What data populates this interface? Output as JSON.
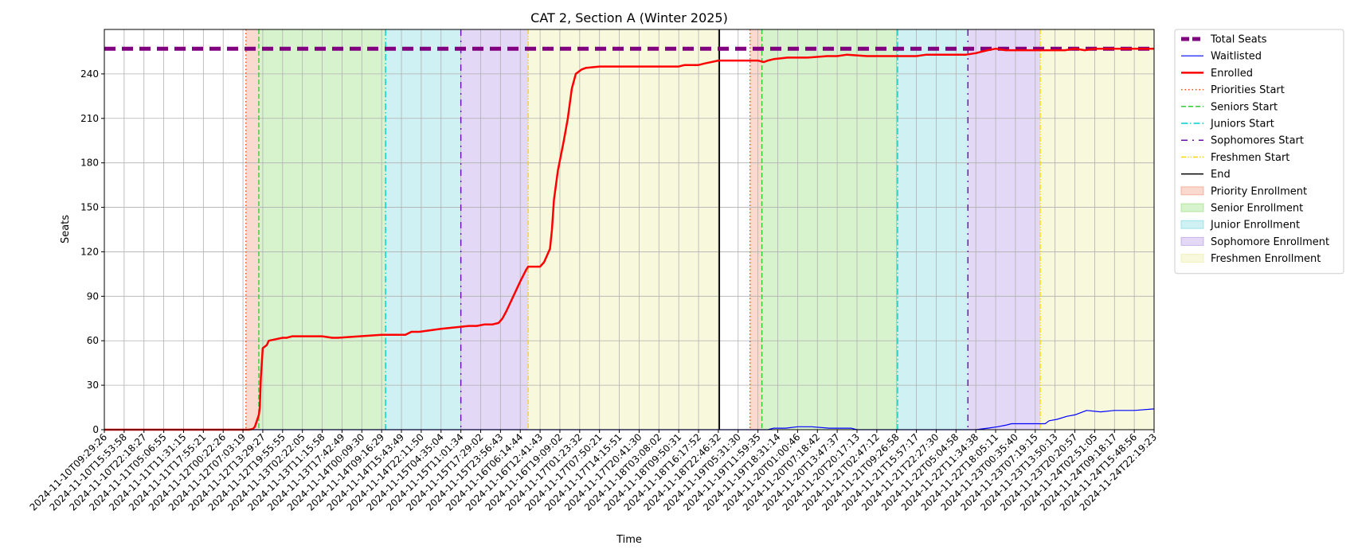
{
  "chart_data": {
    "type": "line",
    "title": "CAT 2, Section A (Winter 2025)",
    "xlabel": "Time",
    "ylabel": "Seats",
    "ylim": [
      0,
      270
    ],
    "yticks": [
      0,
      30,
      60,
      90,
      120,
      150,
      180,
      210,
      240
    ],
    "grid": true,
    "legend_position": "outside right, top",
    "x_tick_labels": [
      "2024-11-10T09:29:26",
      "2024-11-10T15:53:58",
      "2024-11-10T22:18:27",
      "2024-11-11T05:06:55",
      "2024-11-11T11:31:15",
      "2024-11-11T17:55:21",
      "2024-11-12T00:22:26",
      "2024-11-12T07:03:19",
      "2024-11-12T13:29:27",
      "2024-11-12T19:55:55",
      "2024-11-13T02:22:05",
      "2024-11-13T11:15:58",
      "2024-11-13T17:42:49",
      "2024-11-14T00:09:30",
      "2024-11-14T09:16:29",
      "2024-11-14T15:43:49",
      "2024-11-14T22:11:50",
      "2024-11-15T04:35:04",
      "2024-11-15T11:01:34",
      "2024-11-15T17:29:02",
      "2024-11-15T23:56:43",
      "2024-11-16T06:14:44",
      "2024-11-16T12:41:43",
      "2024-11-16T19:09:02",
      "2024-11-17T01:23:32",
      "2024-11-17T07:50:21",
      "2024-11-17T14:15:51",
      "2024-11-17T20:41:30",
      "2024-11-18T03:08:02",
      "2024-11-18T09:50:31",
      "2024-11-18T16:17:52",
      "2024-11-18T22:46:32",
      "2024-11-19T05:31:30",
      "2024-11-19T11:59:35",
      "2024-11-19T18:31:14",
      "2024-11-20T01:00:46",
      "2024-11-20T07:18:42",
      "2024-11-20T13:47:37",
      "2024-11-20T20:17:13",
      "2024-11-21T02:47:12",
      "2024-11-21T09:26:58",
      "2024-11-21T15:57:17",
      "2024-11-21T22:27:30",
      "2024-11-22T05:04:58",
      "2024-11-22T11:34:38",
      "2024-11-22T18:05:11",
      "2024-11-23T00:35:40",
      "2024-11-23T07:19:15",
      "2024-11-23T13:50:13",
      "2024-11-23T20:20:57",
      "2024-11-24T02:51:05",
      "2024-11-24T09:18:17",
      "2024-11-24T15:48:56",
      "2024-11-24T22:19:23"
    ],
    "x_index_range": [
      0,
      53
    ],
    "series": [
      {
        "name": "Total Seats",
        "style": "dashed-thick",
        "color": "#800080",
        "x": [
          0,
          53
        ],
        "y": [
          257,
          257
        ]
      },
      {
        "name": "Waitlisted",
        "style": "solid-thin",
        "color": "#0000ff",
        "x": [
          0,
          33.5,
          33.8,
          34.4,
          35.0,
          35.7,
          36.6,
          37.7,
          38.0,
          44.0,
          44.6,
          45.1,
          45.5,
          45.8,
          46.2,
          46.6,
          47.5,
          47.7,
          48.1,
          48.6,
          49.0,
          49.6,
          50.3,
          51.0,
          52.0,
          53.0
        ],
        "y": [
          0,
          0,
          1,
          1,
          2,
          2,
          1,
          1,
          0,
          0,
          1,
          2,
          3,
          4,
          4,
          4,
          4,
          6,
          7,
          9,
          10,
          13,
          12,
          13,
          13,
          14
        ]
      },
      {
        "name": "Enrolled",
        "style": "solid-thick",
        "color": "#ff0000",
        "x": [
          0,
          7.3,
          7.5,
          7.6,
          7.7,
          7.8,
          7.85,
          7.9,
          8.0,
          8.2,
          8.3,
          9.0,
          9.1,
          9.2,
          9.5,
          11.0,
          11.5,
          11.8,
          14.0,
          14.9,
          15.2,
          15.5,
          15.9,
          17.0,
          18.4,
          18.8,
          19.2,
          19.6,
          19.9,
          20.1,
          20.3,
          21.0,
          21.3,
          21.4,
          21.6,
          21.7,
          22.0,
          22.2,
          22.5,
          22.6,
          22.7,
          22.9,
          23.2,
          23.4,
          23.6,
          23.8,
          24.1,
          24.3,
          25.0,
          29.0,
          29.3,
          30.0,
          30.3,
          31.0,
          32.5,
          33.0,
          33.3,
          33.5,
          33.8,
          34.5,
          35.5,
          36.5,
          37.0,
          37.5,
          38.5,
          40.0,
          41.0,
          41.5,
          42.0,
          43.5,
          44.0,
          44.3,
          44.6,
          45.0,
          45.5,
          46.5,
          48.5,
          49.0,
          49.5,
          50.0,
          51.0,
          53.0
        ],
        "y": [
          0,
          0,
          0.5,
          2,
          6,
          10,
          15,
          35,
          55,
          57,
          60,
          62,
          62,
          62,
          63,
          63,
          62,
          62,
          64,
          64,
          64,
          66,
          66,
          68,
          70,
          70,
          71,
          71,
          72,
          75,
          80,
          100,
          108,
          110,
          110,
          110,
          110,
          113,
          122,
          135,
          155,
          175,
          195,
          210,
          230,
          240,
          243,
          244,
          245,
          245,
          246,
          246,
          247,
          249,
          249,
          249,
          248,
          249,
          250,
          251,
          251,
          252,
          252,
          253,
          252,
          252,
          252,
          253,
          253,
          253,
          254,
          255,
          256,
          257,
          256,
          256,
          256,
          257,
          256,
          257,
          257,
          257
        ]
      }
    ],
    "vertical_lines": [
      {
        "name": "Priorities Start",
        "color": "#ff4500",
        "style": "dotted",
        "x": [
          7.15,
          32.6
        ]
      },
      {
        "name": "Seniors Start",
        "color": "#32cd32",
        "style": "dashed",
        "x": [
          7.8,
          33.2
        ]
      },
      {
        "name": "Juniors Start",
        "color": "#00ced1",
        "style": "dashdot",
        "x": [
          14.2,
          40.05
        ]
      },
      {
        "name": "Sophomores Start",
        "color": "#6a0dad",
        "style": "loosely-dashdot",
        "x": [
          18.0,
          43.6
        ]
      },
      {
        "name": "Freshmen Start",
        "color": "#ffd700",
        "style": "dashdotdot",
        "x": [
          21.4,
          47.25
        ]
      },
      {
        "name": "End",
        "color": "#000000",
        "style": "solid",
        "x": [
          31.05
        ]
      }
    ],
    "spans": [
      {
        "name": "Priority Enrollment",
        "color": "#f08060",
        "ranges": [
          [
            7.15,
            7.8
          ],
          [
            32.6,
            33.2
          ]
        ]
      },
      {
        "name": "Senior Enrollment",
        "color": "#7ad85a",
        "ranges": [
          [
            7.8,
            14.2
          ],
          [
            33.2,
            40.05
          ]
        ]
      },
      {
        "name": "Junior Enrollment",
        "color": "#5fd0d8",
        "ranges": [
          [
            14.2,
            18.0
          ],
          [
            40.05,
            43.6
          ]
        ]
      },
      {
        "name": "Sophomore Enrollment",
        "color": "#a27fde",
        "ranges": [
          [
            18.0,
            21.4
          ],
          [
            43.6,
            47.25
          ]
        ]
      },
      {
        "name": "Freshmen Enrollment",
        "color": "#e8e88a",
        "ranges": [
          [
            21.4,
            31.05
          ],
          [
            47.25,
            53.0
          ]
        ]
      }
    ],
    "legend": [
      {
        "label": "Total Seats",
        "kind": "line",
        "color": "#800080",
        "style": "dashed-thick"
      },
      {
        "label": "Waitlisted",
        "kind": "line",
        "color": "#0000ff",
        "style": "solid-thin"
      },
      {
        "label": "Enrolled",
        "kind": "line",
        "color": "#ff0000",
        "style": "solid-thick"
      },
      {
        "label": "Priorities Start",
        "kind": "line",
        "color": "#ff4500",
        "style": "dotted"
      },
      {
        "label": "Seniors Start",
        "kind": "line",
        "color": "#32cd32",
        "style": "dashed"
      },
      {
        "label": "Juniors Start",
        "kind": "line",
        "color": "#00ced1",
        "style": "dashdot"
      },
      {
        "label": "Sophomores Start",
        "kind": "line",
        "color": "#6a0dad",
        "style": "loosely-dashdot"
      },
      {
        "label": "Freshmen Start",
        "kind": "line",
        "color": "#ffd700",
        "style": "dashdotdot"
      },
      {
        "label": "End",
        "kind": "line",
        "color": "#000000",
        "style": "solid"
      },
      {
        "label": "Priority Enrollment",
        "kind": "patch",
        "color": "#f08060"
      },
      {
        "label": "Senior Enrollment",
        "kind": "patch",
        "color": "#7ad85a"
      },
      {
        "label": "Junior Enrollment",
        "kind": "patch",
        "color": "#5fd0d8"
      },
      {
        "label": "Sophomore Enrollment",
        "kind": "patch",
        "color": "#a27fde"
      },
      {
        "label": "Freshmen Enrollment",
        "kind": "patch",
        "color": "#e8e88a"
      }
    ]
  }
}
